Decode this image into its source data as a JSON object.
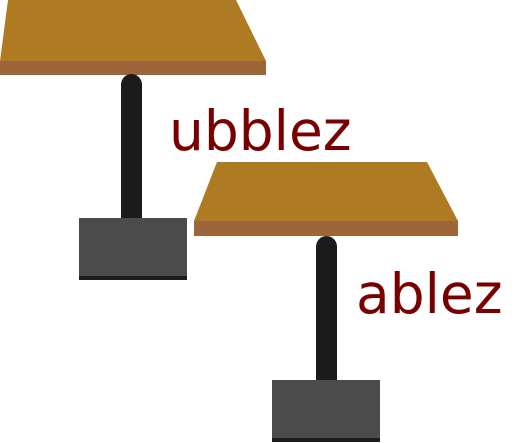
{
  "labels": {
    "first": "ubblez",
    "second": "ablez"
  },
  "colors": {
    "table_top": "#AE7A22",
    "table_edge": "#9C6738",
    "pedestal": "#1B1B1B",
    "base": "#4B4B4B",
    "base_bottom": "#1C1C1C",
    "text": "#780000",
    "background": "#FFFFFF"
  },
  "objects": [
    {
      "name": "table",
      "count": 2
    }
  ]
}
